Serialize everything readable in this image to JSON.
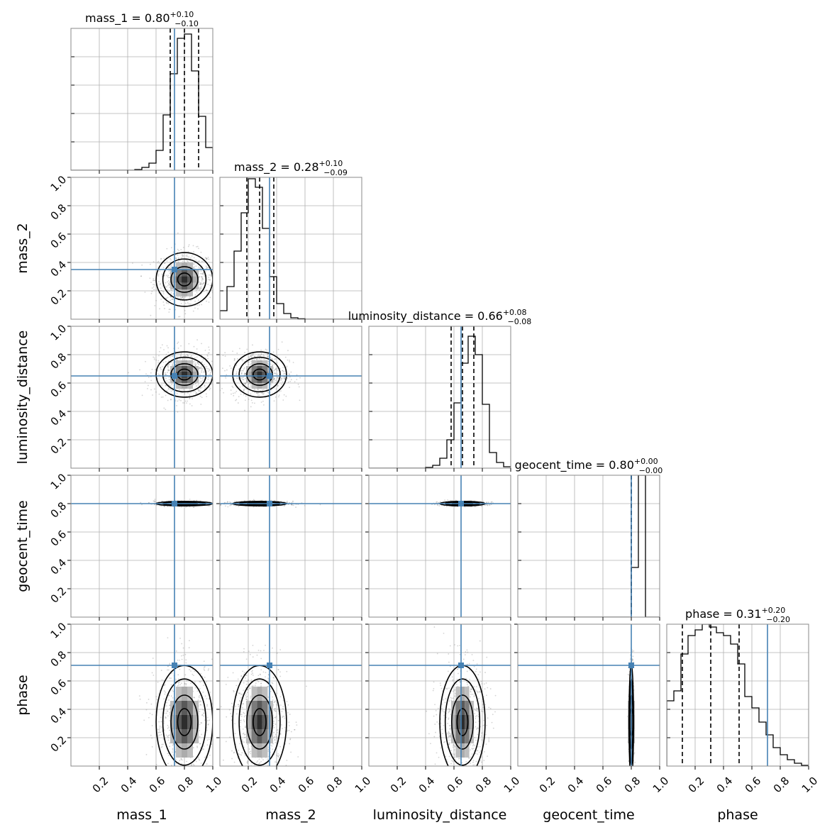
{
  "chart_data": {
    "type": "corner",
    "parameters": [
      "mass_1",
      "mass_2",
      "luminosity_distance",
      "geocent_time",
      "phase"
    ],
    "axis_range": [
      0,
      1
    ],
    "tick_labels": [
      "0.2",
      "0.4",
      "0.6",
      "0.8",
      "1.0"
    ],
    "grid": true,
    "colors": {
      "truth": "#4682b4",
      "histogram": "#000000",
      "quantile_line": "#000000",
      "grid": "#b0b0b0",
      "samples": "#808080"
    },
    "truths": {
      "mass_1": 0.73,
      "mass_2": 0.35,
      "luminosity_distance": 0.65,
      "geocent_time": 0.8,
      "phase": 0.71
    },
    "titles": [
      {
        "param": "mass_1",
        "prefix": "mass_1 = ",
        "median": "0.80",
        "plus": "+0.10",
        "minus": "−0.10"
      },
      {
        "param": "mass_2",
        "prefix": "mass_2 = ",
        "median": "0.28",
        "plus": "+0.10",
        "minus": "−0.09"
      },
      {
        "param": "luminosity_distance",
        "prefix": "luminosity_distance = ",
        "median": "0.66",
        "plus": "+0.08",
        "minus": "−0.08"
      },
      {
        "param": "geocent_time",
        "prefix": "geocent_time = ",
        "median": "0.80",
        "plus": "+0.00",
        "minus": "−0.00"
      },
      {
        "param": "phase",
        "prefix": "phase = ",
        "median": "0.31",
        "plus": "+0.20",
        "minus": "−0.20"
      }
    ],
    "quantiles": {
      "mass_1": [
        0.7,
        0.8,
        0.9
      ],
      "mass_2": [
        0.19,
        0.28,
        0.38
      ],
      "luminosity_distance": [
        0.58,
        0.66,
        0.74
      ],
      "geocent_time": [
        0.8,
        0.8,
        0.8
      ],
      "phase": [
        0.11,
        0.31,
        0.51
      ]
    },
    "histograms": {
      "mass_1": {
        "bin_width": 0.05,
        "bin_start": 0.0,
        "heights": [
          0,
          0,
          0,
          0,
          0,
          0,
          0,
          0,
          0,
          0.005,
          0.02,
          0.05,
          0.14,
          0.39,
          0.68,
          0.93,
          0.96,
          0.7,
          0.38,
          0.16
        ]
      },
      "mass_2": {
        "bin_width": 0.05,
        "bin_start": 0.0,
        "heights": [
          0.06,
          0.23,
          0.48,
          0.75,
          0.99,
          0.93,
          0.64,
          0.3,
          0.11,
          0.04,
          0.01,
          0.003,
          0,
          0,
          0,
          0,
          0,
          0,
          0,
          0
        ]
      },
      "luminosity_distance": {
        "bin_width": 0.05,
        "bin_start": 0.0,
        "heights": [
          0,
          0,
          0,
          0,
          0,
          0,
          0,
          0,
          0.005,
          0.02,
          0.07,
          0.2,
          0.46,
          0.74,
          0.93,
          0.8,
          0.45,
          0.11,
          0.04,
          0.01
        ]
      },
      "geocent_time": {
        "bin_width": 0.05,
        "bin_start": 0.0,
        "heights": [
          0,
          0,
          0,
          0,
          0,
          0,
          0,
          0,
          0,
          0,
          0,
          0,
          0,
          0,
          0,
          0,
          0.35,
          1.0,
          0,
          0
        ]
      },
      "phase": {
        "bin_width": 0.05,
        "bin_start": 0.0,
        "heights": [
          0.46,
          0.53,
          0.79,
          0.92,
          0.96,
          1.0,
          0.98,
          0.94,
          0.92,
          0.86,
          0.72,
          0.49,
          0.41,
          0.31,
          0.22,
          0.13,
          0.08,
          0.045,
          0.02,
          0.005
        ]
      }
    },
    "y_hist_ticks": [
      0.2,
      0.4,
      0.6,
      0.8
    ]
  }
}
